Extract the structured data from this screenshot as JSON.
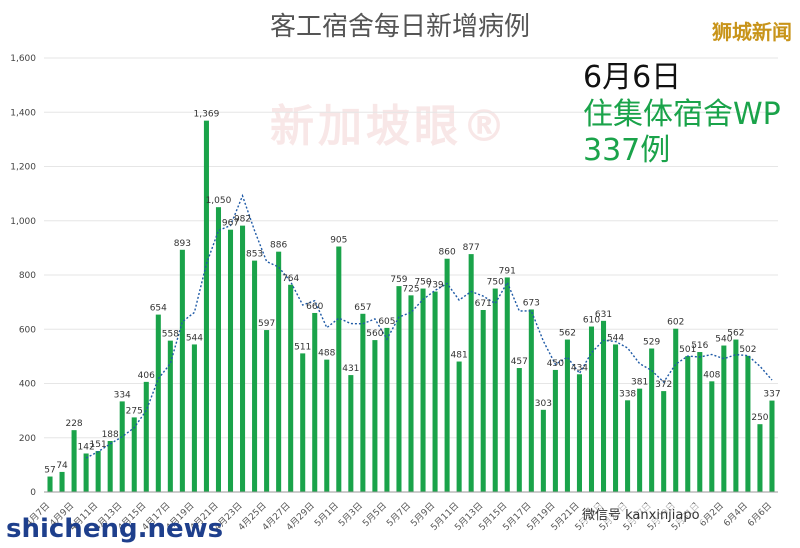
{
  "header": {
    "title": "客工宿舍每日新增病例",
    "brand": "狮城新闻"
  },
  "annotation": {
    "date": "6月6日",
    "line1": "住集体宿舍WP",
    "line2": "337例"
  },
  "watermarks": {
    "logo": "新加坡眼®",
    "bottom": "shicheng.news",
    "wechat": "微信号 kanxinjiapo"
  },
  "colors": {
    "bar": "#1aa34a",
    "trend": "#1f5aa6",
    "grid": "#e6e6e6",
    "axis": "#666666"
  },
  "chart_data": {
    "type": "bar",
    "title": "客工宿舍每日新增病例",
    "ylim": [
      0,
      1600
    ],
    "yticks": [
      0,
      200,
      400,
      600,
      800,
      1000,
      1200,
      1400,
      1600
    ],
    "ytick_labels": [
      "0",
      "200",
      "400",
      "600",
      "800",
      "1,000",
      "1,200",
      "1,400",
      "1,600"
    ],
    "grid": "horizontal",
    "categories": [
      "4月7日",
      "4月8日",
      "4月9日",
      "4月10日",
      "4月11日",
      "4月12日",
      "4月13日",
      "4月14日",
      "4月15日",
      "4月16日",
      "4月17日",
      "4月18日",
      "4月19日",
      "4月20日",
      "4月21日",
      "4月22日",
      "4月23日",
      "4月24日",
      "4月25日",
      "4月26日",
      "4月27日",
      "4月28日",
      "4月29日",
      "4月30日",
      "5月1日",
      "5月2日",
      "5月3日",
      "5月4日",
      "5月5日",
      "5月6日",
      "5月7日",
      "5月8日",
      "5月9日",
      "5月10日",
      "5月11日",
      "5月12日",
      "5月13日",
      "5月14日",
      "5月15日",
      "5月16日",
      "5月17日",
      "5月18日",
      "5月19日",
      "5月20日",
      "5月21日",
      "5月22日",
      "5月23日",
      "5月24日",
      "5月25日",
      "5月26日",
      "5月27日",
      "5月28日",
      "5月29日",
      "5月30日",
      "5月31日",
      "6月1日",
      "6月2日",
      "6月3日",
      "6月4日",
      "6月5日",
      "6月6日"
    ],
    "xtick_labels": [
      "4月7日",
      "",
      "4月9日",
      "",
      "4月11日",
      "",
      "4月13日",
      "",
      "4月15日",
      "",
      "4月17日",
      "",
      "4月19日",
      "",
      "4月21日",
      "",
      "4月23日",
      "",
      "4月25日",
      "",
      "4月27日",
      "",
      "4月29日",
      "",
      "5月1日",
      "",
      "5月3日",
      "",
      "5月5日",
      "",
      "5月7日",
      "",
      "5月9日",
      "",
      "5月11日",
      "",
      "5月13日",
      "",
      "5月15日",
      "",
      "5月17日",
      "",
      "5月19日",
      "",
      "5月21日",
      "",
      "5月23日",
      "",
      "5月25日",
      "",
      "5月27日",
      "",
      "5月29日",
      "",
      "5月31日",
      "",
      "6月2日",
      "",
      "6月4日",
      "",
      "6月6日"
    ],
    "values": [
      57,
      74,
      228,
      142,
      151,
      188,
      334,
      275,
      406,
      654,
      558,
      893,
      544,
      1369,
      1050,
      967,
      982,
      853,
      597,
      886,
      764,
      511,
      660,
      488,
      905,
      431,
      657,
      560,
      605,
      759,
      725,
      750,
      739,
      860,
      481,
      877,
      671,
      750,
      791,
      457,
      673,
      303,
      450,
      562,
      434,
      610,
      631,
      544,
      338,
      381,
      529,
      372,
      602,
      501,
      516,
      408,
      540,
      562,
      502,
      250,
      337
    ],
    "value_labels": [
      "57",
      "74",
      "228",
      "142",
      "151",
      "188",
      "334",
      "275",
      "406",
      "654",
      "558",
      "893",
      "544",
      "1,369",
      "1,050",
      "967",
      "982",
      "853",
      "597",
      "886",
      "764",
      "511",
      "660",
      "488",
      "905",
      "431",
      "657",
      "560",
      "605",
      "759",
      "725",
      "750",
      "739",
      "860",
      "481",
      "877",
      "671",
      "750",
      "791",
      "457",
      "673",
      "303",
      "450",
      "562",
      "434",
      "610",
      "631",
      "544",
      "338",
      "381",
      "529",
      "372",
      "602",
      "501",
      "516",
      "408",
      "540",
      "562",
      "502",
      "250",
      "337"
    ],
    "trend": {
      "style": "dotted",
      "window": 4
    }
  }
}
